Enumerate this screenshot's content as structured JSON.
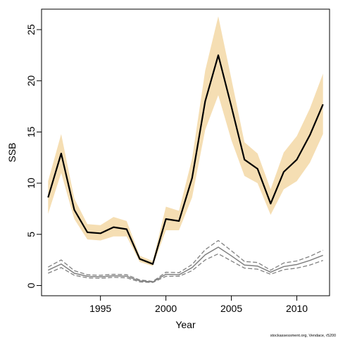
{
  "chart_data": {
    "type": "line",
    "title": "",
    "xlabel": "Year",
    "ylabel": "SSB",
    "xlim": [
      1990.5,
      2012.5
    ],
    "ylim": [
      -1,
      27
    ],
    "xticks": [
      1995,
      2000,
      2005,
      2010
    ],
    "yticks": [
      0,
      5,
      10,
      15,
      20,
      25
    ],
    "grid": false,
    "legend": "none",
    "x": [
      1991,
      1992,
      1993,
      1994,
      1995,
      1996,
      1997,
      1998,
      1999,
      2000,
      2001,
      2002,
      2003,
      2004,
      2005,
      2006,
      2007,
      2008,
      2009,
      2010,
      2011,
      2012
    ],
    "series": [
      {
        "role": "estimate",
        "values": [
          8.6,
          12.9,
          7.4,
          5.2,
          5.1,
          5.7,
          5.5,
          2.6,
          2.1,
          6.5,
          6.3,
          10.5,
          18.0,
          22.5,
          17.5,
          12.3,
          11.4,
          8.0,
          11.1,
          12.3,
          14.7,
          17.7
        ]
      },
      {
        "role": "estimate-lower",
        "values": [
          7.0,
          11.0,
          6.5,
          4.5,
          4.4,
          4.8,
          4.8,
          2.3,
          1.9,
          5.4,
          5.4,
          8.6,
          15.2,
          18.6,
          14.2,
          10.7,
          10.0,
          6.9,
          9.4,
          10.2,
          12.0,
          14.8
        ]
      },
      {
        "role": "estimate-upper",
        "values": [
          10.2,
          14.8,
          8.5,
          6.0,
          5.9,
          6.7,
          6.3,
          2.9,
          2.4,
          7.7,
          7.3,
          12.4,
          21.0,
          26.3,
          20.2,
          14.0,
          12.9,
          9.4,
          13.0,
          14.6,
          17.3,
          20.7
        ]
      },
      {
        "role": "reference",
        "values": [
          1.5,
          2.1,
          1.2,
          0.9,
          0.85,
          0.95,
          0.9,
          0.45,
          0.35,
          1.1,
          1.05,
          1.75,
          3.0,
          3.75,
          2.9,
          2.0,
          1.9,
          1.3,
          1.85,
          2.05,
          2.45,
          2.95
        ]
      },
      {
        "role": "reference-lower",
        "values": [
          1.2,
          1.75,
          1.0,
          0.75,
          0.7,
          0.8,
          0.75,
          0.35,
          0.3,
          0.9,
          0.9,
          1.45,
          2.5,
          3.1,
          2.4,
          1.7,
          1.6,
          1.1,
          1.55,
          1.7,
          2.0,
          2.45
        ]
      },
      {
        "role": "reference-upper",
        "values": [
          1.8,
          2.5,
          1.45,
          1.05,
          1.0,
          1.1,
          1.05,
          0.55,
          0.4,
          1.3,
          1.25,
          2.05,
          3.5,
          4.4,
          3.4,
          2.35,
          2.25,
          1.5,
          2.2,
          2.4,
          2.85,
          3.45
        ]
      }
    ],
    "colors": {
      "band": "#f5deb3",
      "estimate": "#000000",
      "reference": "#808080"
    },
    "credit": "stockassessment.org, Vendace, r5200"
  }
}
